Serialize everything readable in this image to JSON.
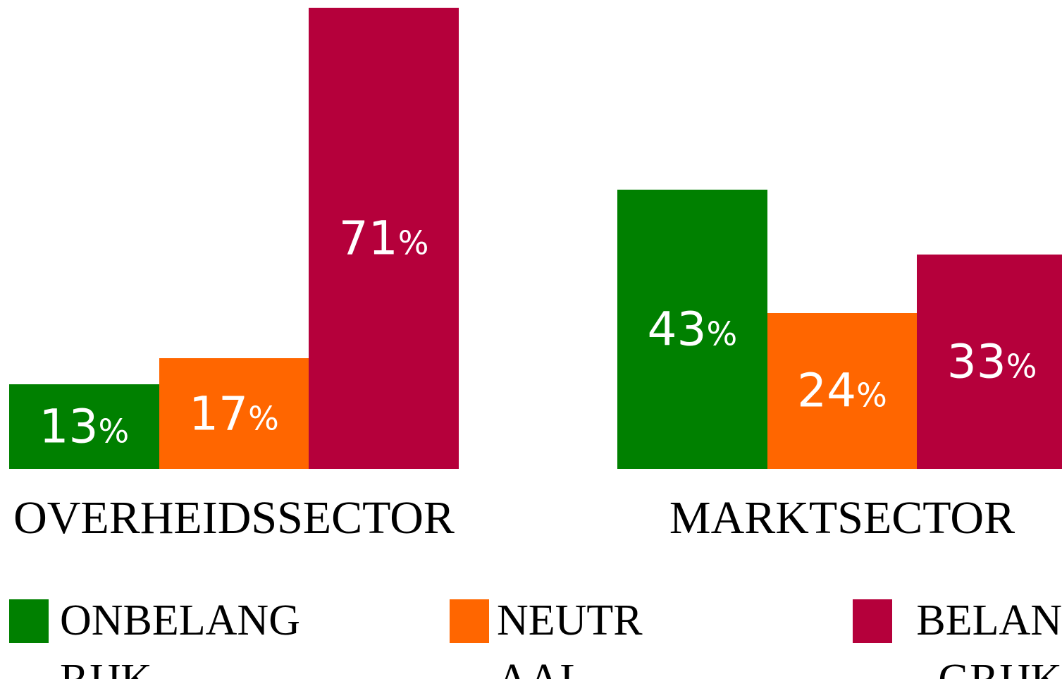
{
  "chart_data": {
    "type": "bar",
    "categories": [
      "OVERHEIDSSECTOR",
      "MARKTSECTOR"
    ],
    "series": [
      {
        "name": "ONBELANGRIJK",
        "color": "#008000",
        "values": [
          13,
          43
        ],
        "value_labels": [
          "13%",
          "43%"
        ]
      },
      {
        "name": "NEUTRAAL",
        "color": "#ff6600",
        "values": [
          17,
          24
        ],
        "value_labels": [
          "17%",
          "24%"
        ]
      },
      {
        "name": "BELANGRIJK",
        "color": "#b5003b",
        "values": [
          71,
          33
        ],
        "value_labels": [
          "71%",
          "33%"
        ]
      }
    ],
    "ylim": [
      0,
      71
    ]
  }
}
